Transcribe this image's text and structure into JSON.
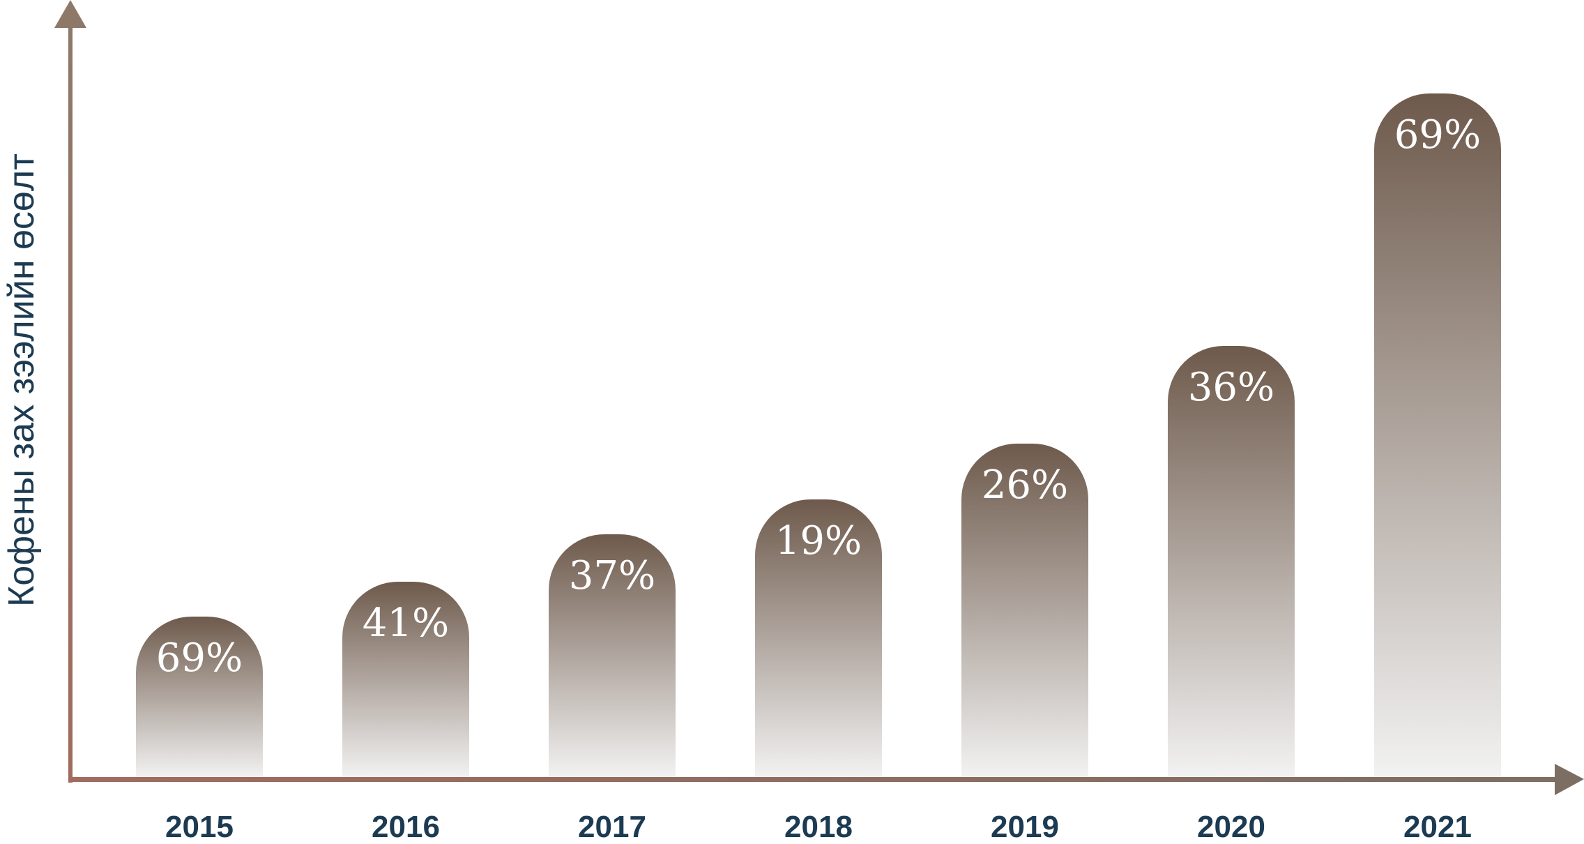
{
  "chart_data": {
    "type": "bar",
    "title": "",
    "xlabel": "",
    "ylabel": "Кофены  зах зээлийн өсөлт",
    "categories": [
      "2015",
      "2016",
      "2017",
      "2018",
      "2019",
      "2020",
      "2021"
    ],
    "series": [
      {
        "values": [
          69,
          41,
          37,
          19,
          26,
          36,
          69
        ],
        "labels": [
          "69%",
          "41%",
          "37%",
          "19%",
          "26%",
          "36%",
          "69%"
        ]
      }
    ],
    "grid": false,
    "legend": "none"
  },
  "colors": {
    "bar_top": "#6e5a4c",
    "bar_bottom": "#f2f2f2",
    "axis_start": "#a16b5f",
    "axis_end": "#7c6e62",
    "text_dark": "#1c3b52",
    "value_text": "#ffffff"
  }
}
